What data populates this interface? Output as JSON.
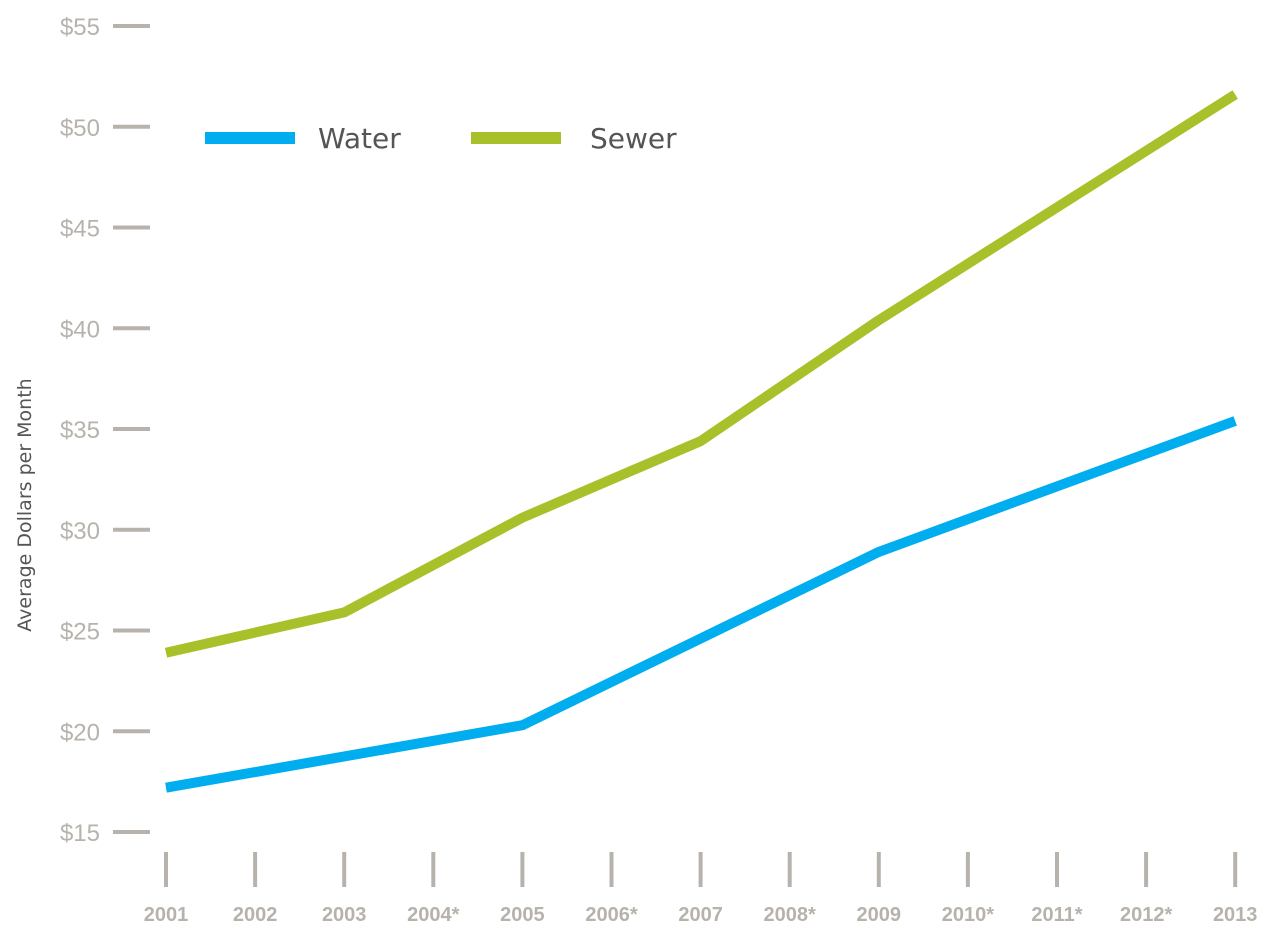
{
  "chart_data": {
    "type": "line",
    "title": "",
    "xlabel": "",
    "ylabel": "Average Dollars per Month",
    "categories": [
      "2001",
      "2002",
      "2003",
      "2004*",
      "2005",
      "2006*",
      "2007",
      "2008*",
      "2009",
      "2010*",
      "2011*",
      "2012*",
      "2013"
    ],
    "ylim": [
      15,
      55
    ],
    "yticks": [
      15,
      20,
      25,
      30,
      35,
      40,
      45,
      50,
      55
    ],
    "ytick_labels": [
      "$15",
      "$20",
      "$25",
      "$30",
      "$35",
      "$40",
      "$45",
      "$50",
      "$55"
    ],
    "grid": false,
    "legend_position": "top-left",
    "series": [
      {
        "name": "Water",
        "color": "#00aeef",
        "points": [
          {
            "x": "2001",
            "y": 17.2
          },
          {
            "x": "2005",
            "y": 20.3
          },
          {
            "x": "2009",
            "y": 28.9
          },
          {
            "x": "2013",
            "y": 35.4
          }
        ]
      },
      {
        "name": "Sewer",
        "color": "#a8c12a",
        "points": [
          {
            "x": "2001",
            "y": 23.9
          },
          {
            "x": "2003",
            "y": 25.9
          },
          {
            "x": "2005",
            "y": 30.6
          },
          {
            "x": "2007",
            "y": 34.4
          },
          {
            "x": "2009",
            "y": 40.4
          },
          {
            "x": "2013",
            "y": 51.6
          }
        ]
      }
    ],
    "colors": {
      "tick": "#b7b3ac",
      "text": "#555555"
    }
  }
}
